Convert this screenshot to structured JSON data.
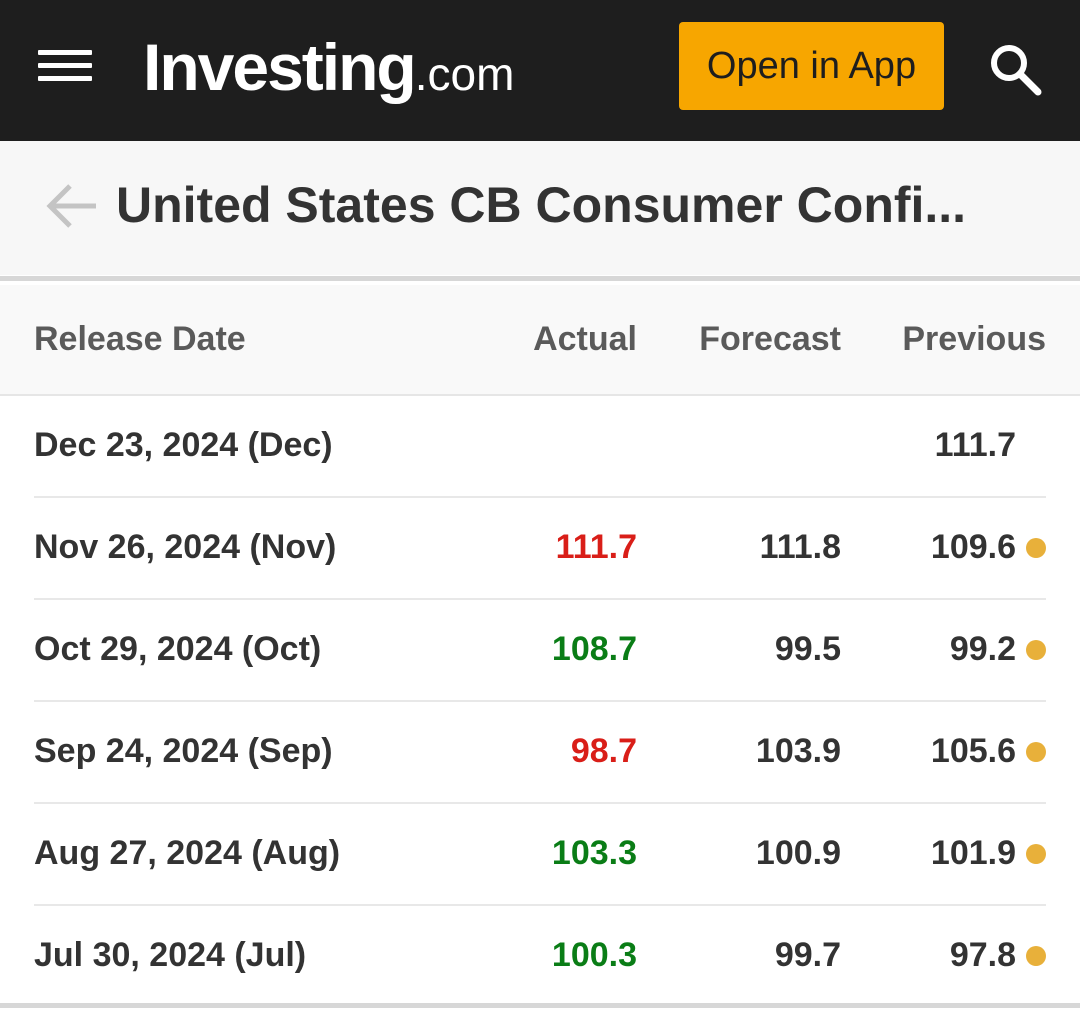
{
  "header": {
    "logo_main": "Investing",
    "logo_tld": ".com",
    "open_app_label": "Open in App",
    "icons": {
      "menu": "hamburger-menu-icon",
      "search": "search-icon"
    }
  },
  "page": {
    "title": "United States CB Consumer Confi...",
    "back_icon": "back-arrow-icon"
  },
  "table": {
    "columns": {
      "date": "Release Date",
      "actual": "Actual",
      "forecast": "Forecast",
      "previous": "Previous"
    },
    "rows": [
      {
        "date": "Dec 23, 2024 (Dec)",
        "actual": "",
        "actual_trend": "",
        "forecast": "",
        "previous": "111.7",
        "revised": false
      },
      {
        "date": "Nov 26, 2024 (Nov)",
        "actual": "111.7",
        "actual_trend": "neg",
        "forecast": "111.8",
        "previous": "109.6",
        "revised": true
      },
      {
        "date": "Oct 29, 2024 (Oct)",
        "actual": "108.7",
        "actual_trend": "pos",
        "forecast": "99.5",
        "previous": "99.2",
        "revised": true
      },
      {
        "date": "Sep 24, 2024 (Sep)",
        "actual": "98.7",
        "actual_trend": "neg",
        "forecast": "103.9",
        "previous": "105.6",
        "revised": true
      },
      {
        "date": "Aug 27, 2024 (Aug)",
        "actual": "103.3",
        "actual_trend": "pos",
        "forecast": "100.9",
        "previous": "101.9",
        "revised": true
      },
      {
        "date": "Jul 30, 2024 (Jul)",
        "actual": "100.3",
        "actual_trend": "pos",
        "forecast": "99.7",
        "previous": "97.8",
        "revised": true
      }
    ]
  },
  "colors": {
    "header_bg": "#1e1e1e",
    "accent": "#f7a600",
    "negative": "#d91e18",
    "positive": "#0a7d16",
    "revised_dot": "#e8b03a"
  }
}
